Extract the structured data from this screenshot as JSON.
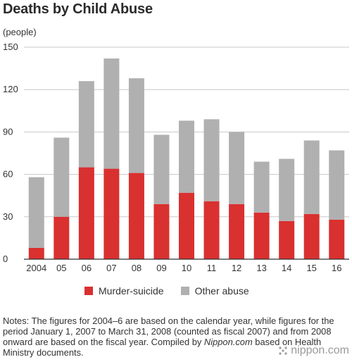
{
  "title": "Deaths by Child Abuse",
  "unit_label": "(people)",
  "colors": {
    "murder_suicide": "#d93030",
    "other_abuse": "#b0b0b0",
    "axis": "#333333",
    "grid": "#c8c8c8"
  },
  "legend": {
    "murder_suicide": "Murder-suicide",
    "other_abuse": "Other abuse"
  },
  "notes": {
    "part1": "Notes: The figures for 2004–6 are based on the calendar year, while figures for the period January 1, 2007 to March 31, 2008 (counted as fiscal 2007) and from 2008 onward are based on the fiscal year. Compiled by ",
    "source_italic": "Nippon.com",
    "part2": " based on Health Ministry documents."
  },
  "logo": {
    "text": "nippon.com",
    "icon": "dots-logo-icon"
  },
  "chart_data": {
    "type": "bar",
    "stacked": true,
    "title": "Deaths by Child Abuse",
    "ylabel": "(people)",
    "xlabel": "",
    "categories": [
      "2004",
      "05",
      "06",
      "07",
      "08",
      "09",
      "10",
      "11",
      "12",
      "13",
      "14",
      "15",
      "16"
    ],
    "series": [
      {
        "name": "Murder-suicide",
        "color": "#d93030",
        "values": [
          8,
          30,
          65,
          64,
          61,
          39,
          47,
          41,
          39,
          33,
          27,
          32,
          28
        ]
      },
      {
        "name": "Other abuse",
        "color": "#b0b0b0",
        "values": [
          50,
          56,
          61,
          78,
          67,
          49,
          51,
          58,
          51,
          36,
          44,
          52,
          49
        ]
      }
    ],
    "totals": [
      58,
      86,
      126,
      142,
      128,
      88,
      98,
      99,
      90,
      69,
      71,
      84,
      77
    ],
    "ylim": [
      0,
      150
    ],
    "yticks": [
      0,
      30,
      60,
      90,
      120,
      150
    ],
    "grid": true,
    "legend_position": "bottom"
  }
}
